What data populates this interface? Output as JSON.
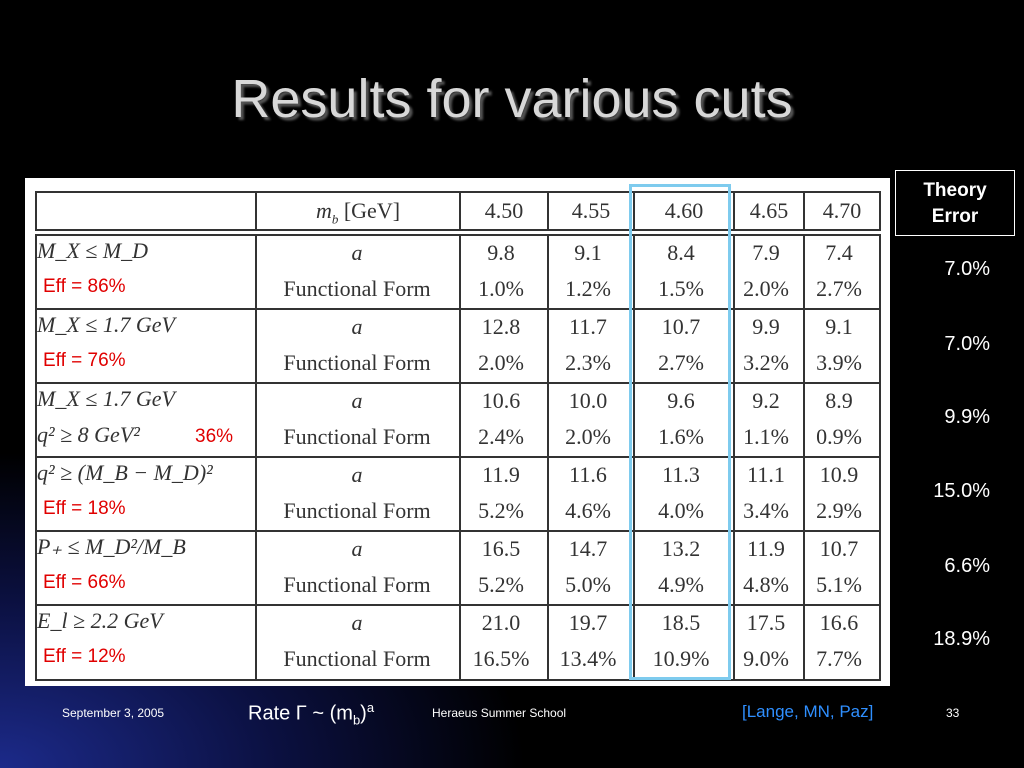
{
  "title": "Results for various cuts",
  "table": {
    "header_label": "m_b [GeV]",
    "mb_values": [
      "4.50",
      "4.55",
      "4.60",
      "4.65",
      "4.70"
    ],
    "rows": [
      {
        "cut": "M_X ≤ M_D",
        "cut2": "",
        "eff": "Eff = 86%",
        "a": [
          "9.8",
          "9.1",
          "8.4",
          "7.9",
          "7.4"
        ],
        "ff": [
          "1.0%",
          "1.2%",
          "1.5%",
          "2.0%",
          "2.7%"
        ]
      },
      {
        "cut": "M_X ≤ 1.7 GeV",
        "cut2": "",
        "eff": "Eff = 76%",
        "a": [
          "12.8",
          "11.7",
          "10.7",
          "9.9",
          "9.1"
        ],
        "ff": [
          "2.0%",
          "2.3%",
          "2.7%",
          "3.2%",
          "3.9%"
        ]
      },
      {
        "cut": "M_X ≤ 1.7 GeV",
        "cut2": "q² ≥ 8 GeV²",
        "eff": "36%",
        "a": [
          "10.6",
          "10.0",
          "9.6",
          "9.2",
          "8.9"
        ],
        "ff": [
          "2.4%",
          "2.0%",
          "1.6%",
          "1.1%",
          "0.9%"
        ]
      },
      {
        "cut": "q² ≥ (M_B − M_D)²",
        "cut2": "",
        "eff": "Eff = 18%",
        "a": [
          "11.9",
          "11.6",
          "11.3",
          "11.1",
          "10.9"
        ],
        "ff": [
          "5.2%",
          "4.6%",
          "4.0%",
          "3.4%",
          "2.9%"
        ]
      },
      {
        "cut": "P₊ ≤ M_D²/M_B",
        "cut2": "",
        "eff": "Eff = 66%",
        "a": [
          "16.5",
          "14.7",
          "13.2",
          "11.9",
          "10.7"
        ],
        "ff": [
          "5.2%",
          "5.0%",
          "4.9%",
          "4.8%",
          "5.1%"
        ]
      },
      {
        "cut": "E_l ≥ 2.2 GeV",
        "cut2": "",
        "eff": "Eff = 12%",
        "a": [
          "21.0",
          "19.7",
          "18.5",
          "17.5",
          "16.6"
        ],
        "ff": [
          "16.5%",
          "13.4%",
          "10.9%",
          "9.0%",
          "7.7%"
        ]
      }
    ],
    "col_a_label": "a",
    "col_ff_label": "Functional Form"
  },
  "theory": {
    "label_line1": "Theory",
    "label_line2": "Error",
    "values": [
      "7.0%",
      "7.0%",
      "9.9%",
      "15.0%",
      "6.6%",
      "18.9%"
    ]
  },
  "footer": {
    "date": "September 3, 2005",
    "rate_prefix": "Rate Γ ~ (m",
    "rate_sub": "b",
    "rate_close": ")",
    "rate_sup": "a",
    "school": "Heraeus Summer School",
    "reference": "[Lange, MN, Paz]",
    "page": "33"
  },
  "colors": {
    "highlight": "#7ecbee",
    "efficiency": "#e00000",
    "reference": "#2f8fff"
  }
}
